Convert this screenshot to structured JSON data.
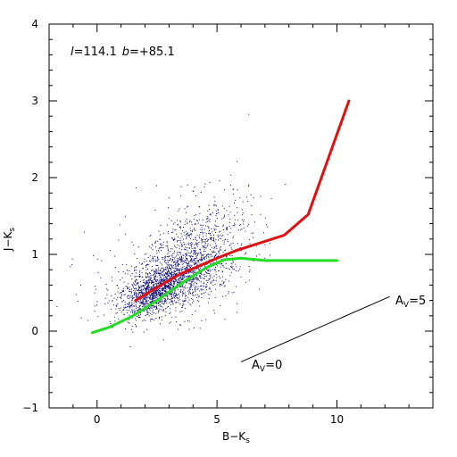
{
  "chart_data": {
    "type": "scatter",
    "xlabel": {
      "main": "B−K",
      "sub": "s"
    },
    "ylabel": {
      "main": "J−K",
      "sub": "s"
    },
    "xlim": [
      -2,
      14
    ],
    "ylim": [
      -1,
      4
    ],
    "x_ticks": [
      0,
      5,
      10
    ],
    "y_ticks": [
      -1,
      0,
      1,
      2,
      3,
      4
    ],
    "x_minor_step": 1,
    "y_minor_step": 0.2,
    "grid": false,
    "title_annotation": {
      "l_symbol": "l",
      "l_value": "=114.1",
      "b_symbol": "b",
      "b_value": "=+85.1"
    },
    "scatter": {
      "color": "#0a0a6e",
      "description_points": "dense cloud of stars centered near (2.5, 0.55) with an upper branch near (4.2, 1.0)",
      "clusters": [
        {
          "cx": 2.3,
          "cy": 0.5,
          "sx": 0.7,
          "sy": 0.16,
          "rho": 0.55,
          "n": 900
        },
        {
          "cx": 3.4,
          "cy": 0.72,
          "sx": 1.0,
          "sy": 0.22,
          "rho": 0.5,
          "n": 900
        },
        {
          "cx": 4.2,
          "cy": 1.05,
          "sx": 1.1,
          "sy": 0.38,
          "rho": 0.35,
          "n": 700
        },
        {
          "cx": 2.8,
          "cy": 0.75,
          "sx": 1.6,
          "sy": 0.35,
          "rho": 0.3,
          "n": 300
        }
      ]
    },
    "series": [
      {
        "name": "",
        "color": "#e01010",
        "points": [
          [
            1.6,
            0.4
          ],
          [
            2.5,
            0.57
          ],
          [
            3.5,
            0.75
          ],
          [
            4.5,
            0.88
          ],
          [
            5.0,
            0.95
          ],
          [
            5.8,
            1.05
          ],
          [
            6.5,
            1.12
          ],
          [
            7.8,
            1.25
          ],
          [
            8.8,
            1.52
          ],
          [
            10.5,
            3.0
          ]
        ]
      },
      {
        "name": "",
        "color": "#22dd22",
        "points": [
          [
            -0.2,
            -0.02
          ],
          [
            0.5,
            0.05
          ],
          [
            1.5,
            0.2
          ],
          [
            2.5,
            0.4
          ],
          [
            3.5,
            0.62
          ],
          [
            4.5,
            0.82
          ],
          [
            5.3,
            0.93
          ],
          [
            6.0,
            0.95
          ],
          [
            7.0,
            0.92
          ],
          [
            10.0,
            0.92
          ]
        ]
      }
    ],
    "reddening_vector": {
      "start": [
        6.0,
        -0.4
      ],
      "end": [
        12.2,
        0.45
      ],
      "label_start": "A",
      "label_start_sub": "V",
      "label_start_val": "=0",
      "label_end": "A",
      "label_end_sub": "V",
      "label_end_val": "=5"
    }
  }
}
